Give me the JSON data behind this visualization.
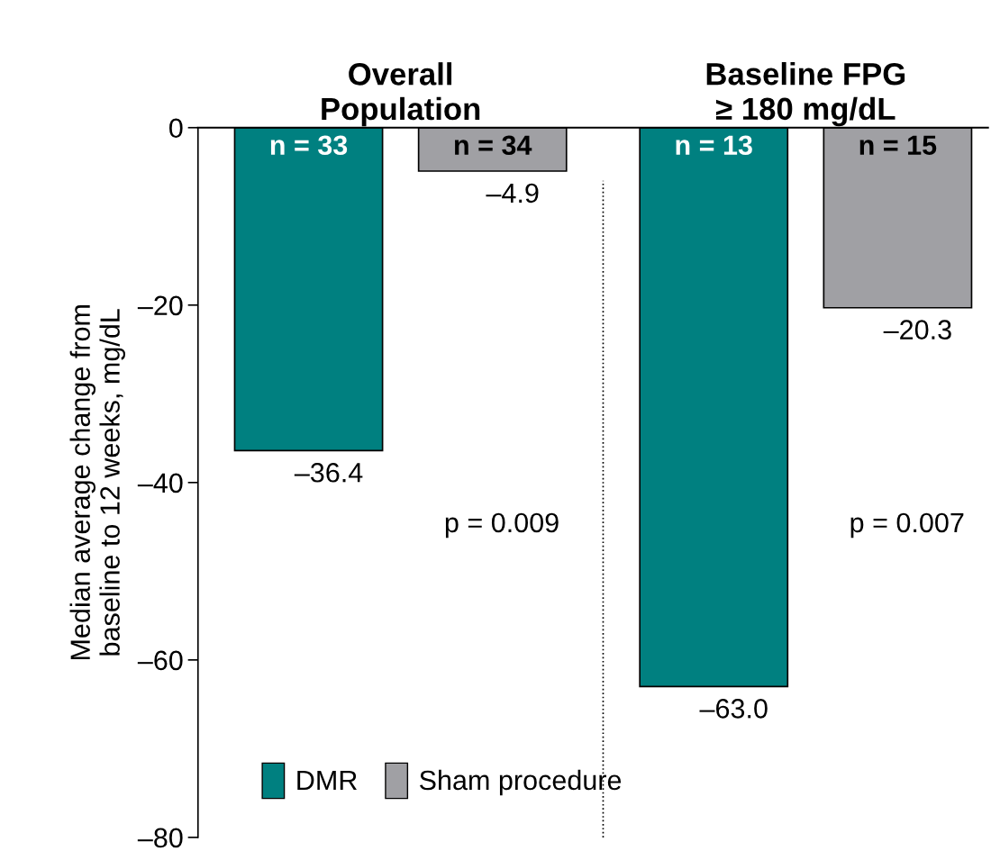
{
  "chart_data": {
    "type": "bar",
    "categories": [
      "Overall\nPopulation",
      "Baseline FPG\n≥ 180 mg/dL"
    ],
    "ylabel": "Median average change from\nbaseline to 12 weeks, mg/dL",
    "series": [
      {
        "name": "DMR",
        "color": "#008080",
        "values": [
          -36.4,
          -63.0
        ],
        "value_labels": [
          "–36.4",
          "–63.0"
        ]
      },
      {
        "name": "Sham procedure",
        "color": "#a0a0a4",
        "values": [
          -4.9,
          -20.3
        ],
        "value_labels": [
          "–4.9",
          "–20.3"
        ]
      }
    ],
    "ylim": [
      -80,
      0
    ],
    "yticks": [
      0,
      {
        "value": -20,
        "label": "–20"
      },
      {
        "value": -40,
        "label": "–40"
      },
      {
        "value": -60,
        "label": "–60"
      },
      {
        "value": -80,
        "label": "–80"
      }
    ],
    "annotations": [
      "n = 33",
      "n = 34",
      "n = 13",
      "n = 15",
      "p = 0.009",
      "p = 0.007"
    ],
    "legend": "bottom left",
    "grid": false
  }
}
